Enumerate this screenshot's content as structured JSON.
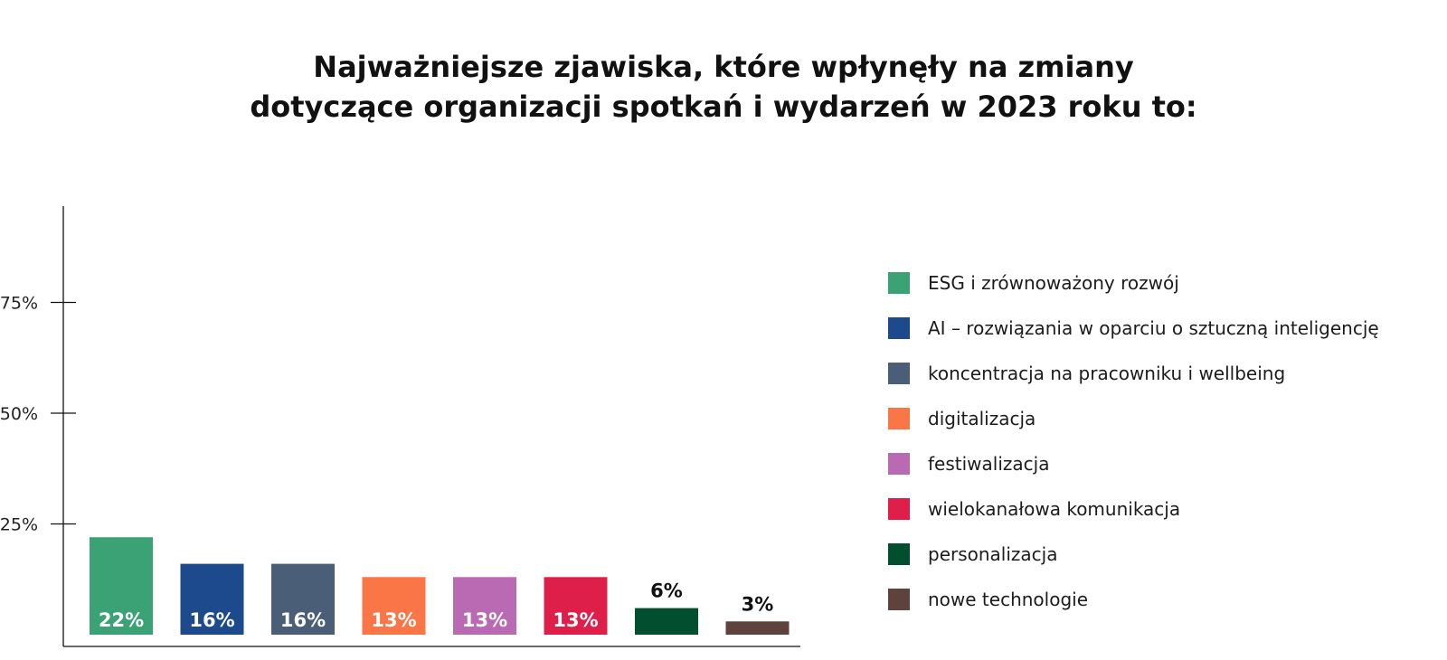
{
  "chart_data": {
    "type": "bar",
    "title_lines": [
      "Najważniejsze zjawiska, które wpłynęły na zmiany",
      "dotyczące organizacji spotkań i wydarzeń w 2023 roku to:"
    ],
    "categories": [
      "ESG i zrównoważony rozwój",
      "AI – rozwiązania w oparciu o sztuczną inteligencję",
      "koncentracja na pracowniku i wellbeing",
      "digitalizacja",
      "festiwalizacja",
      "wielokanałowa komunikacja",
      "personalizacja",
      "nowe technologie"
    ],
    "values": [
      22,
      16,
      16,
      13,
      13,
      13,
      6,
      3
    ],
    "value_labels": [
      "22%",
      "16%",
      "16%",
      "13%",
      "13%",
      "13%",
      "6%",
      "3%"
    ],
    "colors": [
      "#3aa274",
      "#1c4a8c",
      "#4a5e78",
      "#fa7646",
      "#ba6ab3",
      "#de1f4a",
      "#014f2e",
      "#5e433d"
    ],
    "yticks": [
      25,
      50,
      75
    ],
    "ytick_labels": [
      "25%",
      "50%",
      "75%"
    ],
    "ylim": [
      0,
      100
    ],
    "xlabel": "",
    "ylabel": "",
    "legend_position": "right",
    "grid": false
  }
}
